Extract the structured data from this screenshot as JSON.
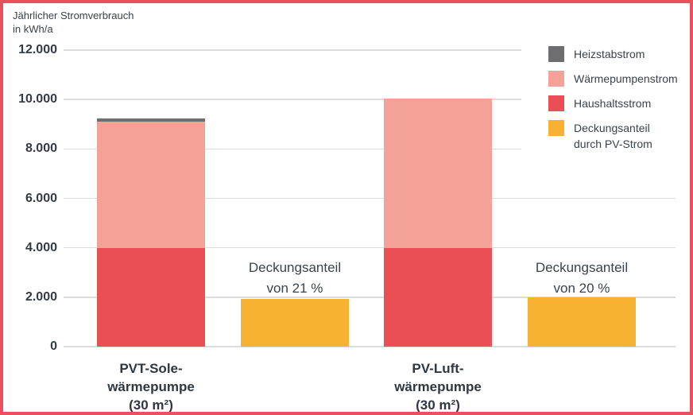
{
  "title": {
    "line1": "Jährlicher Stromverbrauch",
    "line2": "in kWh/a"
  },
  "colors": {
    "frame_border": "#e9515c",
    "gridline": "#dcdcdc",
    "text_dark": "#333b46",
    "heizstabstrom": "#6e6e71",
    "waermepumpenstrom": "#f4a197",
    "haushaltsstrom": "#e94f55",
    "pv_strom": "#f7b234"
  },
  "legend": {
    "items": [
      {
        "name": "heizstabstrom",
        "label": "Heizstabstrom",
        "color": "#6e6e71"
      },
      {
        "name": "waermepumpenstrom",
        "label": "Wärmepumpenstrom",
        "color": "#f4a197"
      },
      {
        "name": "haushaltsstrom",
        "label": "Haushaltsstrom",
        "color": "#e94f55"
      },
      {
        "name": "pv-strom",
        "label": "Deckungsanteil\ndurch PV-Strom",
        "color": "#f7b234"
      }
    ]
  },
  "chart_data": {
    "type": "bar",
    "stacked": true,
    "title": "Jährlicher Stromverbrauch in kWh/a",
    "ylabel": "kWh/a",
    "ylim": [
      0,
      12000
    ],
    "yticks": [
      0,
      2000,
      4000,
      6000,
      8000,
      10000,
      12000
    ],
    "ytick_labels": [
      "0",
      "2.000",
      "4.000",
      "6.000",
      "8.000",
      "10.000",
      "12.000"
    ],
    "grid": true,
    "legend_position": "top-right",
    "series": [
      {
        "name": "Heizstabstrom",
        "color": "#6e6e71"
      },
      {
        "name": "Wärmepumpenstrom",
        "color": "#f4a197"
      },
      {
        "name": "Haushaltsstrom",
        "color": "#e94f55"
      },
      {
        "name": "Deckungsanteil durch PV-Strom",
        "color": "#f7b234"
      }
    ],
    "groups": [
      {
        "category": "PVT-Sole-\nwärmepumpe\n(30 m²)",
        "stack": [
          {
            "series": "Haushaltsstrom",
            "value": 4000
          },
          {
            "series": "Wärmepumpenstrom",
            "value": 5100
          },
          {
            "series": "Heizstabstrom",
            "value": 150
          }
        ],
        "total": 9250,
        "pv_coverage": {
          "series": "Deckungsanteil durch PV-Strom",
          "value": 1940,
          "percent": 21,
          "label": "Deckungsanteil\nvon 21 %"
        }
      },
      {
        "category": "PV-Luft-\nwärmepumpe\n(30 m²)",
        "stack": [
          {
            "series": "Haushaltsstrom",
            "value": 4000
          },
          {
            "series": "Wärmepumpenstrom",
            "value": 6050
          }
        ],
        "total": 10050,
        "pv_coverage": {
          "series": "Deckungsanteil durch PV-Strom",
          "value": 2010,
          "percent": 20,
          "label": "Deckungsanteil\nvon 20 %"
        }
      }
    ]
  }
}
